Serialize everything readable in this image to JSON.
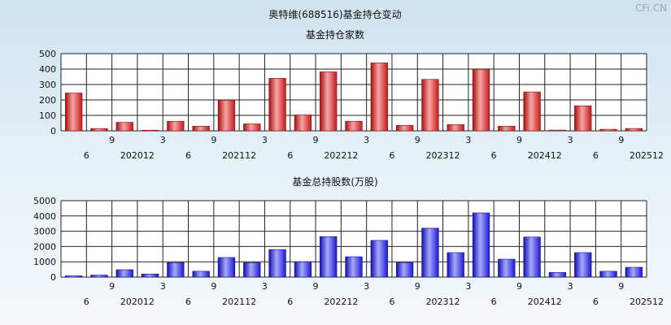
{
  "page_title": "奥特维(688516)基金持仓变动",
  "watermark": "CFi.CN",
  "colors": {
    "red_bar": "#d42323",
    "red_bar_light": "#f6a6a6",
    "blue_bar": "#2020d8",
    "blue_bar_light": "#a8a8ff",
    "grid": "#111111"
  },
  "chart_data": [
    {
      "type": "bar",
      "title": "基金持仓家数",
      "categories": [
        "2020-06",
        "2020-09",
        "2020-12",
        "2021-03",
        "2021-06",
        "2021-09",
        "2021-12",
        "2022-03",
        "2022-06",
        "2022-09",
        "2022-12",
        "2023-03",
        "2023-06",
        "2023-09",
        "2023-12",
        "2024-03",
        "2024-06",
        "2024-09",
        "2024-12",
        "2025-03",
        "2025-06",
        "2025-09",
        "2025-12"
      ],
      "x_tick_row1": [
        "",
        "9",
        "",
        "3",
        "",
        "9",
        "",
        "3",
        "",
        "9",
        "",
        "3",
        "",
        "9",
        "",
        "3",
        "",
        "9",
        "",
        "3",
        "",
        "9",
        ""
      ],
      "x_tick_row2": [
        "6",
        "",
        "202012",
        "",
        "6",
        "",
        "202112",
        "",
        "6",
        "",
        "202212",
        "",
        "6",
        "",
        "202312",
        "",
        "6",
        "",
        "202412",
        "",
        "6",
        "",
        "202512"
      ],
      "values": [
        245,
        15,
        55,
        3,
        62,
        30,
        198,
        45,
        340,
        103,
        382,
        62,
        440,
        35,
        333,
        40,
        398,
        30,
        252,
        5,
        162,
        10,
        15
      ],
      "ylim": [
        0,
        500
      ],
      "yticks": [
        0,
        100,
        200,
        300,
        400,
        500
      ],
      "grid": true,
      "color": "red"
    },
    {
      "type": "bar",
      "title": "基金总持股数(万股)",
      "categories": [
        "2020-06",
        "2020-09",
        "2020-12",
        "2021-03",
        "2021-06",
        "2021-09",
        "2021-12",
        "2022-03",
        "2022-06",
        "2022-09",
        "2022-12",
        "2023-03",
        "2023-06",
        "2023-09",
        "2023-12",
        "2024-03",
        "2024-06",
        "2024-09",
        "2024-12",
        "2025-03",
        "2025-06",
        "2025-09",
        "2025-12"
      ],
      "x_tick_row1": [
        "",
        "9",
        "",
        "3",
        "",
        "9",
        "",
        "3",
        "",
        "9",
        "",
        "3",
        "",
        "9",
        "",
        "3",
        "",
        "9",
        "",
        "3",
        "",
        "9",
        ""
      ],
      "x_tick_row2": [
        "6",
        "",
        "202012",
        "",
        "6",
        "",
        "202112",
        "",
        "6",
        "",
        "202212",
        "",
        "6",
        "",
        "202312",
        "",
        "6",
        "",
        "202412",
        "",
        "6",
        "",
        "202512"
      ],
      "values": [
        80,
        130,
        480,
        200,
        950,
        380,
        1280,
        950,
        1800,
        1000,
        2650,
        1330,
        2400,
        950,
        3200,
        1600,
        4200,
        1170,
        2620,
        300,
        1600,
        380,
        640
      ],
      "ylim": [
        0,
        5000
      ],
      "yticks": [
        0,
        1000,
        2000,
        3000,
        4000,
        5000
      ],
      "grid": true,
      "color": "blue"
    }
  ]
}
